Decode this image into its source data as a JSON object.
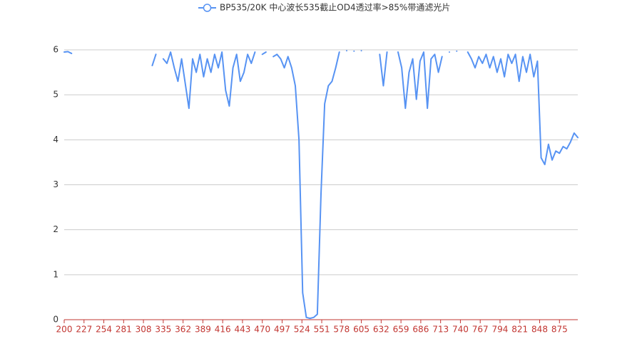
{
  "chart_data": {
    "type": "line",
    "x": [
      200,
      205,
      210,
      215,
      220,
      225,
      230,
      235,
      240,
      245,
      250,
      255,
      260,
      265,
      270,
      275,
      280,
      285,
      290,
      295,
      300,
      305,
      310,
      315,
      320,
      325,
      330,
      335,
      340,
      345,
      350,
      355,
      360,
      365,
      370,
      375,
      380,
      385,
      390,
      395,
      400,
      405,
      410,
      415,
      420,
      425,
      430,
      435,
      440,
      445,
      450,
      455,
      460,
      465,
      470,
      475,
      480,
      485,
      490,
      495,
      500,
      505,
      510,
      515,
      520,
      525,
      530,
      535,
      540,
      545,
      550,
      555,
      560,
      565,
      570,
      575,
      580,
      585,
      590,
      595,
      600,
      605,
      610,
      615,
      620,
      625,
      630,
      635,
      640,
      645,
      650,
      655,
      660,
      665,
      670,
      675,
      680,
      685,
      690,
      695,
      700,
      705,
      710,
      715,
      720,
      725,
      730,
      735,
      740,
      745,
      750,
      755,
      760,
      765,
      770,
      775,
      780,
      785,
      790,
      795,
      800,
      805,
      810,
      815,
      820,
      825,
      830,
      835,
      840,
      845,
      850,
      855,
      860,
      865,
      870,
      875,
      880,
      885,
      890,
      895,
      900
    ],
    "series": [
      {
        "name": "BP535/20K 中心波长535截止OD4透过率>85%带通滤光片",
        "color": "#5793f3",
        "values": [
          5.95,
          5.96,
          5.92,
          null,
          null,
          null,
          null,
          null,
          null,
          null,
          null,
          null,
          null,
          null,
          null,
          null,
          null,
          null,
          null,
          null,
          null,
          null,
          null,
          null,
          5.65,
          5.9,
          null,
          5.8,
          5.7,
          5.95,
          5.6,
          5.3,
          5.8,
          5.25,
          4.7,
          5.8,
          5.5,
          5.9,
          5.4,
          5.8,
          5.5,
          5.9,
          5.6,
          5.95,
          5.1,
          4.75,
          5.6,
          5.9,
          5.3,
          5.5,
          5.9,
          5.7,
          5.95,
          null,
          5.9,
          5.95,
          null,
          5.85,
          5.9,
          5.8,
          5.6,
          5.85,
          5.6,
          5.2,
          4.0,
          0.6,
          0.05,
          0.03,
          0.05,
          0.12,
          2.8,
          4.8,
          5.2,
          5.3,
          5.6,
          5.95,
          null,
          5.98,
          null,
          5.97,
          null,
          5.98,
          null,
          null,
          null,
          null,
          5.9,
          5.2,
          5.95,
          null,
          null,
          5.95,
          5.6,
          4.7,
          5.5,
          5.8,
          4.9,
          5.75,
          5.95,
          4.7,
          5.8,
          5.9,
          5.5,
          5.85,
          null,
          5.95,
          null,
          5.97,
          null,
          null,
          5.95,
          5.8,
          5.6,
          5.85,
          5.7,
          5.9,
          5.6,
          5.85,
          5.5,
          5.8,
          5.4,
          5.9,
          5.7,
          5.9,
          5.3,
          5.85,
          5.5,
          5.9,
          5.4,
          5.75,
          3.6,
          3.45,
          3.9,
          3.55,
          3.75,
          3.7,
          3.85,
          3.8,
          3.95,
          4.15,
          4.05
        ]
      }
    ],
    "xlim": [
      200,
      900
    ],
    "xticks": [
      200,
      227,
      254,
      281,
      308,
      335,
      362,
      389,
      416,
      443,
      470,
      497,
      524,
      551,
      578,
      605,
      632,
      659,
      686,
      713,
      740,
      767,
      794,
      821,
      848,
      875
    ],
    "ylim": [
      0,
      6
    ],
    "yticks": [
      0,
      1,
      2,
      3,
      4,
      5,
      6
    ],
    "grid": true
  }
}
